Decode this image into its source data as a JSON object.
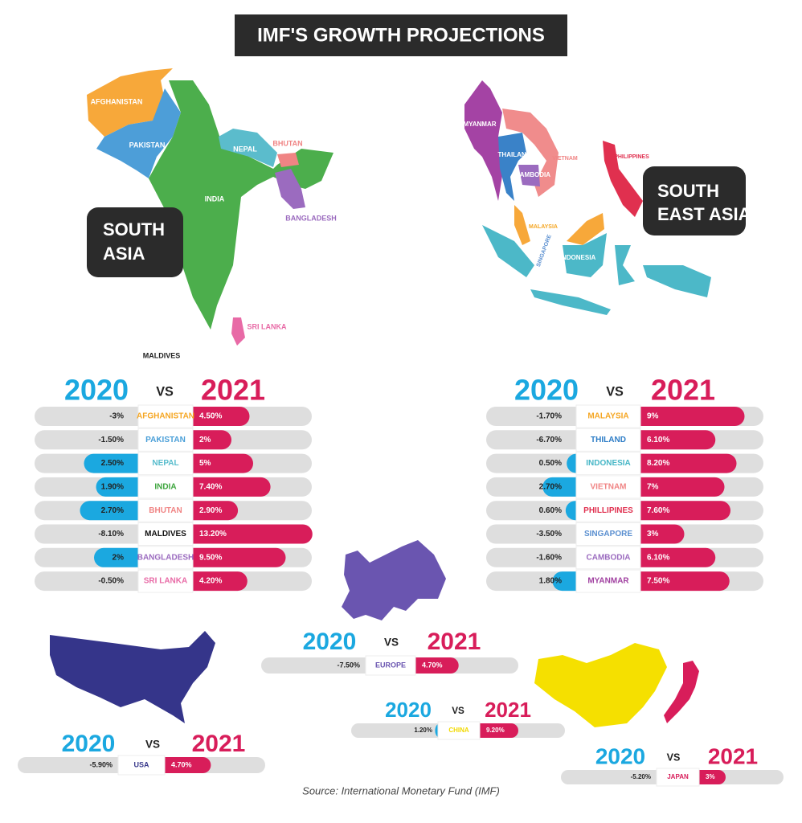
{
  "title": "IMF'S GROWTH PROJECTIONS",
  "maps": {
    "south_asia": {
      "box": [
        "SOUTH",
        "ASIA"
      ],
      "labels": [
        "AFGHANISTAN",
        "PAKISTAN",
        "NEPAL",
        "BHUTAN",
        "INDIA",
        "BANGLADESH",
        "SRI LANKA",
        "MALDIVES"
      ]
    },
    "south_east_asia": {
      "box": [
        "SOUTH",
        "EAST ASIA"
      ],
      "labels": [
        "MYANMAR",
        "THAILAND",
        "VIETNAM",
        "CAMBODIA",
        "PHILIPPINES",
        "MALAYSIA",
        "SINGAPORE",
        "INDONESIA"
      ]
    }
  },
  "colors": {
    "year_a": "#1ba8e0",
    "year_b": "#d81d5a",
    "track": "#dedede"
  },
  "panels": [
    {
      "year_a": "2020",
      "vs": "VS",
      "year_b": "2021",
      "rows": [
        {
          "country": "AFGHANISTAN",
          "color": "#f5a623",
          "a": -3,
          "a_label": "-3%",
          "b": 4.5,
          "b_label": "4.50%"
        },
        {
          "country": "PAKISTAN",
          "color": "#4a9fd8",
          "a": -1.5,
          "a_label": "-1.50%",
          "b": 2,
          "b_label": "2%"
        },
        {
          "country": "NEPAL",
          "color": "#56bccc",
          "a": 2.5,
          "a_label": "2.50%",
          "b": 5,
          "b_label": "5%"
        },
        {
          "country": "INDIA",
          "color": "#3da53d",
          "a": 1.9,
          "a_label": "1.90%",
          "b": 7.4,
          "b_label": "7.40%"
        },
        {
          "country": "BHUTAN",
          "color": "#f08484",
          "a": 2.7,
          "a_label": "2.70%",
          "b": 2.9,
          "b_label": "2.90%"
        },
        {
          "country": "MALDIVES",
          "color": "#111111",
          "a": -8.1,
          "a_label": "-8.10%",
          "b": 13.2,
          "b_label": "13.20%"
        },
        {
          "country": "BANGLADESH",
          "color": "#9b6bbf",
          "a": 2,
          "a_label": "2%",
          "b": 9.5,
          "b_label": "9.50%"
        },
        {
          "country": "SRI LANKA",
          "color": "#e86aa6",
          "a": -0.5,
          "a_label": "-0.50%",
          "b": 4.2,
          "b_label": "4.20%"
        }
      ]
    },
    {
      "year_a": "2020",
      "vs": "VS",
      "year_b": "2021",
      "rows": [
        {
          "country": "MALAYSIA",
          "color": "#f5a623",
          "a": -1.7,
          "a_label": "-1.70%",
          "b": 9,
          "b_label": "9%"
        },
        {
          "country": "THILAND",
          "color": "#2c7cc6",
          "a": -6.7,
          "a_label": "-6.70%",
          "b": 6.1,
          "b_label": "6.10%"
        },
        {
          "country": "INDONESIA",
          "color": "#46b6c6",
          "a": 0.5,
          "a_label": "0.50%",
          "b": 8.2,
          "b_label": "8.20%"
        },
        {
          "country": "VIETNAM",
          "color": "#f08484",
          "a": 2.7,
          "a_label": "2.70%",
          "b": 7,
          "b_label": "7%"
        },
        {
          "country": "PHILLIPINES",
          "color": "#e0304f",
          "a": 0.6,
          "a_label": "0.60%",
          "b": 7.6,
          "b_label": "7.60%"
        },
        {
          "country": "SINGAPORE",
          "color": "#5a8fd0",
          "a": -3.5,
          "a_label": "-3.50%",
          "b": 3,
          "b_label": "3%"
        },
        {
          "country": "CAMBODIA",
          "color": "#9b6bbf",
          "a": -1.6,
          "a_label": "-1.60%",
          "b": 6.1,
          "b_label": "6.10%"
        },
        {
          "country": "MYANMAR",
          "color": "#a040a0",
          "a": 1.8,
          "a_label": "1.80%",
          "b": 7.5,
          "b_label": "7.50%"
        }
      ]
    },
    {
      "year_a": "2020",
      "vs": "VS",
      "year_b": "2021",
      "rows": [
        {
          "country": "EUROPE",
          "color": "#6a55b0",
          "a": -7.5,
          "a_label": "-7.50%",
          "b": 4.7,
          "b_label": "4.70%"
        }
      ]
    },
    {
      "year_a": "2020",
      "vs": "VS",
      "year_b": "2021",
      "rows": [
        {
          "country": "CHINA",
          "color": "#f2d900",
          "a": 1.2,
          "a_label": "1.20%",
          "b": 9.2,
          "b_label": "9.20%"
        }
      ]
    },
    {
      "year_a": "2020",
      "vs": "VS",
      "year_b": "2021",
      "rows": [
        {
          "country": "USA",
          "color": "#3a3a8c",
          "a": -5.9,
          "a_label": "-5.90%",
          "b": 4.7,
          "b_label": "4.70%"
        }
      ]
    },
    {
      "year_a": "2020",
      "vs": "VS",
      "year_b": "2021",
      "rows": [
        {
          "country": "JAPAN",
          "color": "#d81d5a",
          "a": -5.2,
          "a_label": "-5.20%",
          "b": 3,
          "b_label": "3%"
        }
      ]
    }
  ],
  "source": "Source: International Monetary Fund (IMF)"
}
